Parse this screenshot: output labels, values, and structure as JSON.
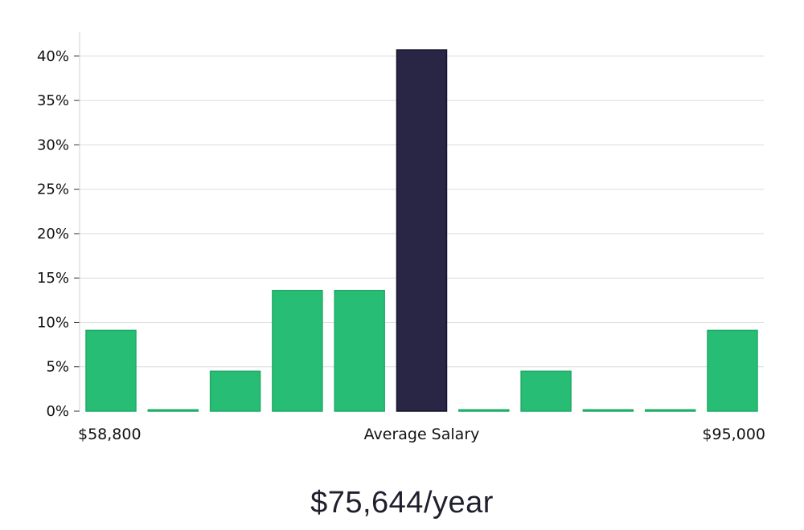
{
  "chart_data": {
    "type": "bar",
    "title": "",
    "xlabel": "Average Salary",
    "ylabel": "",
    "x_min_label": "$58,800",
    "x_max_label": "$95,000",
    "y_unit": "%",
    "ylim": [
      0,
      42.7
    ],
    "yticks": [
      0,
      5,
      10,
      15,
      20,
      25,
      30,
      35,
      40
    ],
    "yticklabels": [
      "0%",
      "5%",
      "10%",
      "15%",
      "20%",
      "25%",
      "30%",
      "35%",
      "40%"
    ],
    "grid": true,
    "values": [
      9.1,
      0.0,
      4.5,
      13.6,
      13.6,
      40.7,
      0.0,
      4.5,
      0.0,
      0.0,
      9.1
    ],
    "highlight_index": 5,
    "colors": {
      "bar": "#27bd74",
      "bar_border": "#1faa66",
      "highlight": "#282545",
      "highlight_border": "#15132a"
    }
  },
  "summary": {
    "average_salary": "$75,644/year"
  }
}
